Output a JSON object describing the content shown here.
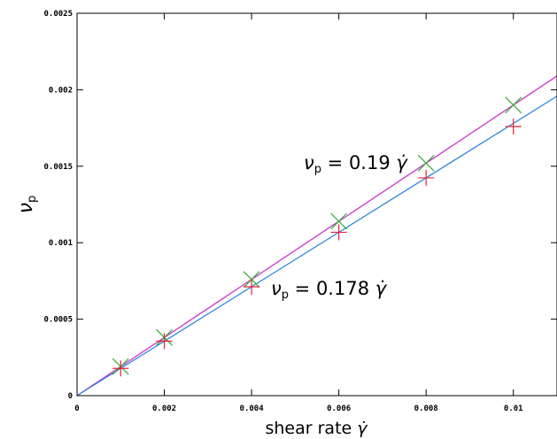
{
  "chart_data": {
    "type": "scatter",
    "title": "",
    "xlabel": {
      "prefix": "shear rate ",
      "symbol": "γ̇"
    },
    "ylabel": {
      "symbol": "ν",
      "subscript": "p"
    },
    "xlim": [
      0,
      0.011
    ],
    "ylim": [
      0,
      0.0025
    ],
    "x_ticks": [
      {
        "value": 0,
        "label": "0"
      },
      {
        "value": 0.002,
        "label": "0.002"
      },
      {
        "value": 0.004,
        "label": "0.004"
      },
      {
        "value": 0.006,
        "label": "0.006"
      },
      {
        "value": 0.008,
        "label": "0.008"
      },
      {
        "value": 0.01,
        "label": "0.01"
      }
    ],
    "y_ticks": [
      {
        "value": 0,
        "label": "0"
      },
      {
        "value": 0.0005,
        "label": "0.0005"
      },
      {
        "value": 0.001,
        "label": "0.001"
      },
      {
        "value": 0.0015,
        "label": "0.0015"
      },
      {
        "value": 0.002,
        "label": "0.002"
      },
      {
        "value": 0.0025,
        "label": "0.0025"
      }
    ],
    "grid": false,
    "legend": "none",
    "series": [
      {
        "marker": "x",
        "color": "#33aa33",
        "x": [
          0.001,
          0.002,
          0.004,
          0.006,
          0.008,
          0.01
        ],
        "y": [
          0.00019,
          0.00038,
          0.00076,
          0.00114,
          0.00152,
          0.0019
        ]
      },
      {
        "marker": "+",
        "color": "#e8203a",
        "x": [
          0.001,
          0.002,
          0.004,
          0.006,
          0.008,
          0.01
        ],
        "y": [
          0.000178,
          0.000356,
          0.000712,
          0.001068,
          0.001424,
          0.00176
        ]
      }
    ],
    "fit_lines": [
      {
        "slope": 0.19,
        "color": "#cc33cc",
        "label": {
          "symbol": "ν",
          "subscript": "p",
          "equals": " = 0.19 ",
          "rate": "γ̇"
        }
      },
      {
        "slope": 0.178,
        "color": "#3388dd",
        "label": {
          "symbol": "ν",
          "subscript": "p",
          "equals": " = 0.178 ",
          "rate": "γ̇"
        }
      }
    ]
  }
}
